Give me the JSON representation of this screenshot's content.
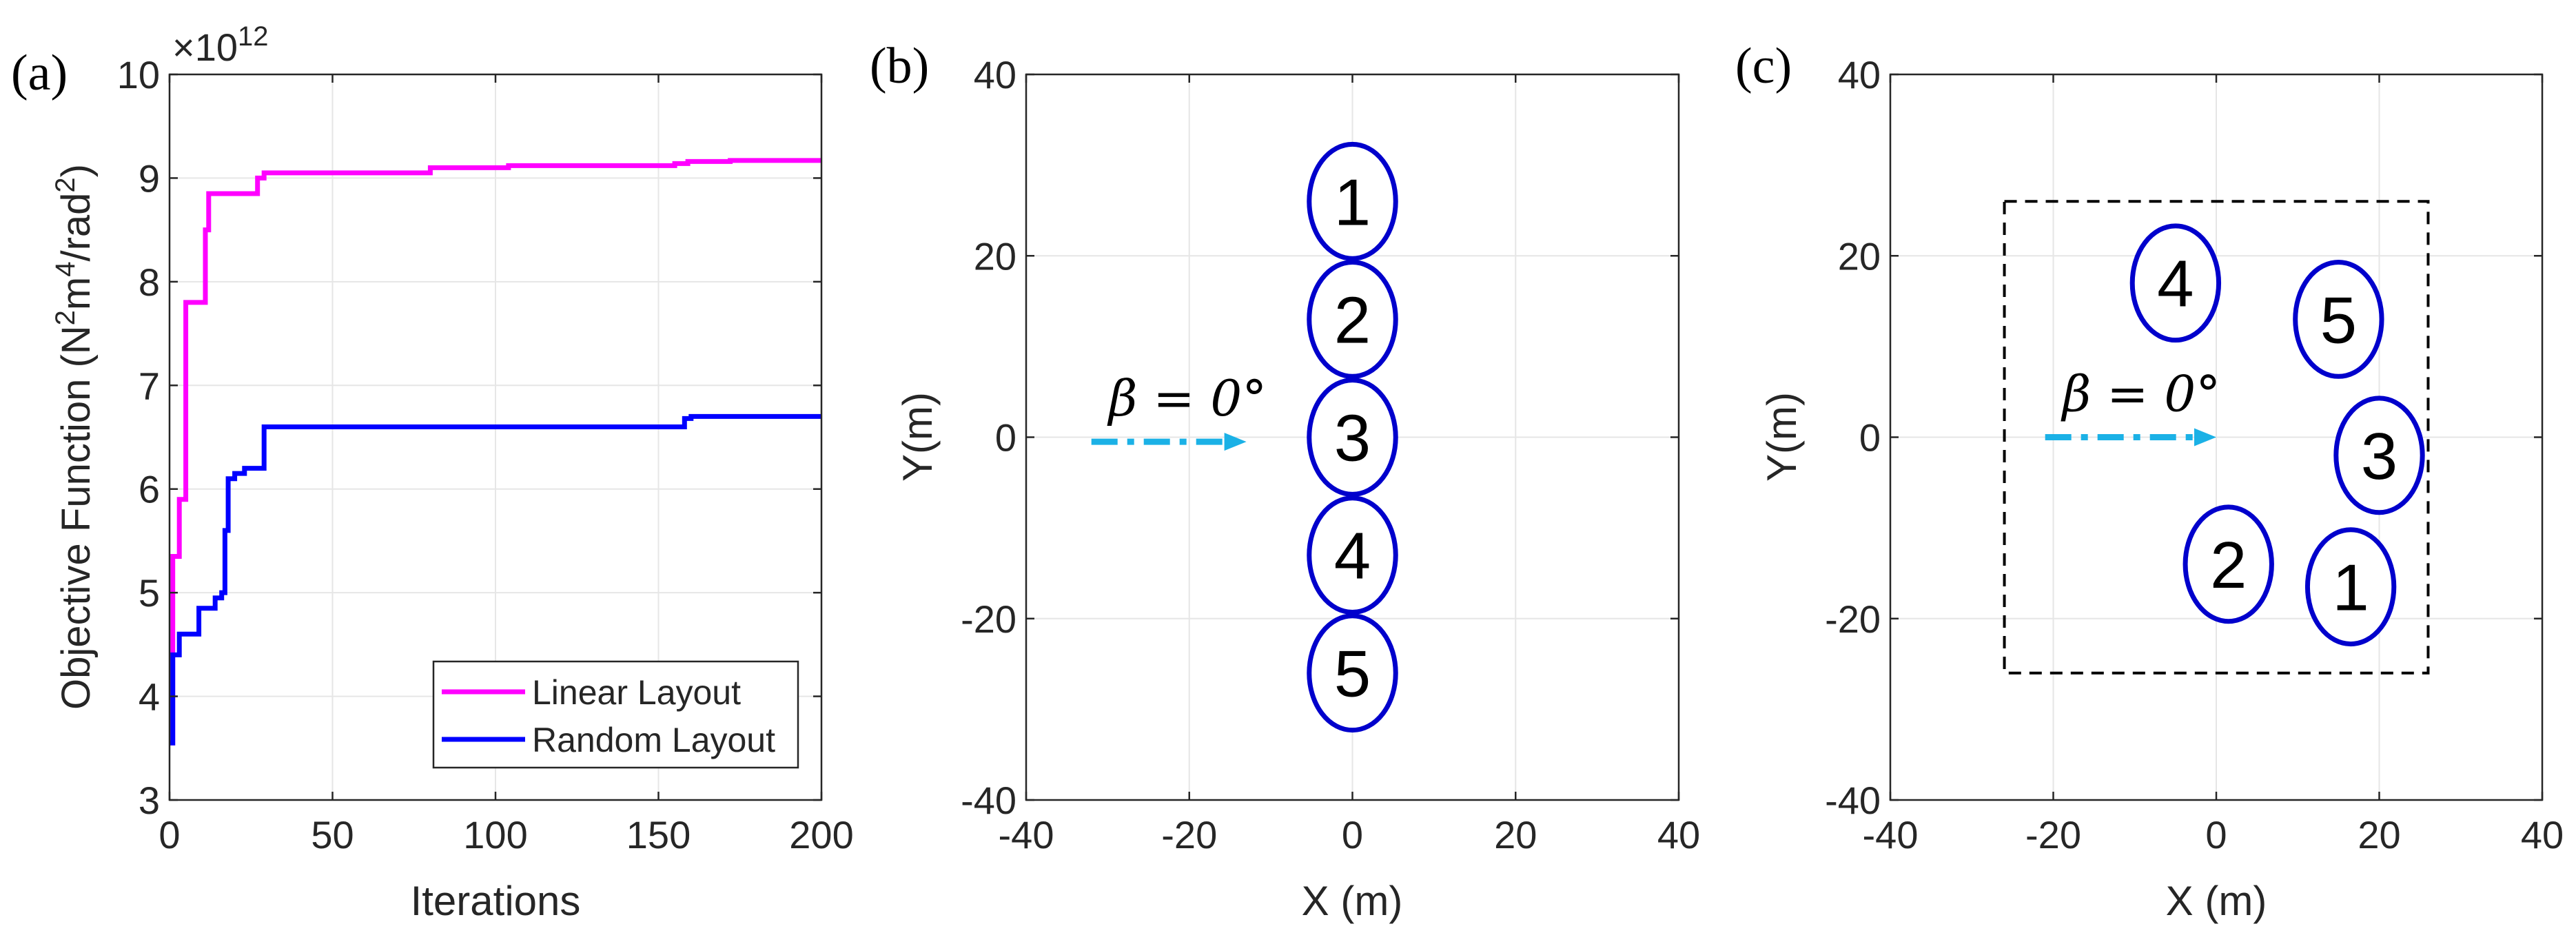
{
  "colors": {
    "linear": "#FF00FF",
    "random": "#0000FF",
    "turbine_edge": "#0000CC",
    "arrow": "#1BB1E6",
    "grid": "#e6e6e6",
    "axis": "#262626",
    "boundary": "#000000"
  },
  "chart_data": [
    {
      "id": "a",
      "panel_label": "(a)",
      "type": "line",
      "xlabel": "Iterations",
      "ylabel": "Objective Function (N2m4/rad2)",
      "ylabel_parts": {
        "pre": "Objective Function (N",
        "s1": "2",
        "m": "m",
        "s2": "4",
        "mid": "/rad",
        "s3": "2",
        "post": ")"
      },
      "exponent_label": {
        "base": "×10",
        "exp": "12"
      },
      "xlim": [
        0,
        200
      ],
      "ylim": [
        3,
        10
      ],
      "xticks": [
        0,
        50,
        100,
        150,
        200
      ],
      "xtick_labels": [
        "0",
        "50",
        "100",
        "150",
        "200"
      ],
      "yticks": [
        3,
        4,
        5,
        6,
        7,
        8,
        9,
        10
      ],
      "ytick_labels": [
        "3",
        "4",
        "5",
        "6",
        "7",
        "8",
        "9",
        "10"
      ],
      "grid": true,
      "legend_position": "bottom-right",
      "series": [
        {
          "name": "Linear Layout",
          "color": "#FF00FF",
          "x": [
            0,
            1,
            1,
            3,
            3,
            5,
            5,
            7,
            7,
            11,
            11,
            12,
            12,
            27,
            27,
            29,
            29,
            80,
            80,
            104,
            104,
            155,
            155,
            159,
            159,
            172,
            172,
            200
          ],
          "y": [
            3.55,
            3.55,
            5.35,
            5.35,
            5.9,
            5.9,
            7.8,
            7.8,
            7.8,
            7.8,
            8.5,
            8.5,
            8.85,
            8.85,
            9.0,
            9.0,
            9.05,
            9.05,
            9.1,
            9.1,
            9.12,
            9.12,
            9.14,
            9.14,
            9.16,
            9.16,
            9.17,
            9.17
          ]
        },
        {
          "name": "Random Layout",
          "color": "#0000FF",
          "x": [
            0,
            1,
            1,
            3,
            3,
            9,
            9,
            14,
            14,
            16,
            16,
            17,
            17,
            18,
            18,
            20,
            20,
            23,
            23,
            26,
            26,
            29,
            29,
            158,
            158,
            160,
            160,
            200
          ],
          "y": [
            3.55,
            3.55,
            4.4,
            4.4,
            4.6,
            4.6,
            4.85,
            4.85,
            4.95,
            4.95,
            5.0,
            5.0,
            5.6,
            5.6,
            6.1,
            6.1,
            6.15,
            6.15,
            6.2,
            6.2,
            6.2,
            6.2,
            6.6,
            6.6,
            6.68,
            6.68,
            6.7,
            6.7
          ]
        }
      ]
    },
    {
      "id": "b",
      "panel_label": "(b)",
      "type": "scatter",
      "xlabel": "X (m)",
      "ylabel": "Y(m)",
      "xlim": [
        -40,
        40
      ],
      "ylim": [
        -40,
        40
      ],
      "xticks": [
        -40,
        -20,
        0,
        20,
        40
      ],
      "xtick_labels": [
        "-40",
        "-20",
        "0",
        "20",
        "40"
      ],
      "yticks": [
        -40,
        -20,
        0,
        20,
        40
      ],
      "ytick_labels": [
        "-40",
        "-20",
        "0",
        "20",
        "40"
      ],
      "grid": true,
      "turbine_radius": [
        5.3,
        6.3
      ],
      "turbines": [
        {
          "label": "1",
          "x": 0,
          "y": 26
        },
        {
          "label": "2",
          "x": 0,
          "y": 13
        },
        {
          "label": "3",
          "x": 0,
          "y": 0
        },
        {
          "label": "4",
          "x": 0,
          "y": -13
        },
        {
          "label": "5",
          "x": 0,
          "y": -26
        }
      ],
      "wave_arrow": {
        "label": "β = 0°",
        "x_start": -32,
        "x_end": -13,
        "y": -0.5
      },
      "boundary": null
    },
    {
      "id": "c",
      "panel_label": "(c)",
      "type": "scatter",
      "xlabel": "X (m)",
      "ylabel": "Y(m)",
      "xlim": [
        -40,
        40
      ],
      "ylim": [
        -40,
        40
      ],
      "xticks": [
        -40,
        -20,
        0,
        20,
        40
      ],
      "xtick_labels": [
        "-40",
        "-20",
        "0",
        "20",
        "40"
      ],
      "yticks": [
        -40,
        -20,
        0,
        20,
        40
      ],
      "ytick_labels": [
        "-40",
        "-20",
        "0",
        "20",
        "40"
      ],
      "grid": true,
      "turbine_radius": [
        5.3,
        6.3
      ],
      "turbines": [
        {
          "label": "1",
          "x": 16.5,
          "y": -16.5
        },
        {
          "label": "2",
          "x": 1.5,
          "y": -14
        },
        {
          "label": "3",
          "x": 20,
          "y": -2
        },
        {
          "label": "4",
          "x": -5,
          "y": 17
        },
        {
          "label": "5",
          "x": 15,
          "y": 13
        }
      ],
      "wave_arrow": {
        "label": "β = 0°",
        "x_start": -21,
        "x_end": 0,
        "y": 0
      },
      "boundary": {
        "x": [
          -26,
          26
        ],
        "y": [
          -26,
          26
        ]
      }
    }
  ]
}
